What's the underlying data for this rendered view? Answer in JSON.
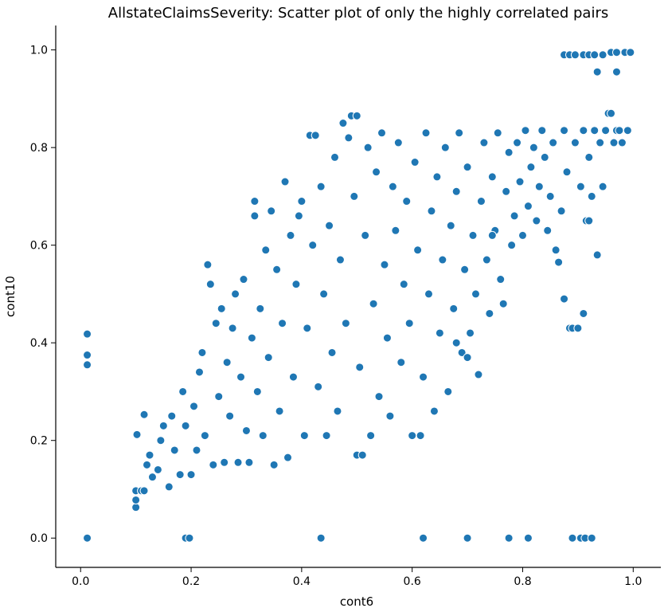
{
  "chart_data": {
    "type": "scatter",
    "title": "AllstateClaimsSeverity: Scatter plot of only the highly correlated pairs",
    "xlabel": "cont6",
    "ylabel": "cont10",
    "xlim": [
      -0.045,
      1.05
    ],
    "ylim": [
      -0.06,
      1.05
    ],
    "xticks": [
      0.0,
      0.2,
      0.4,
      0.6,
      0.8,
      1.0
    ],
    "xtick_labels": [
      "0.0",
      "0.2",
      "0.4",
      "0.6",
      "0.8",
      "1.0"
    ],
    "yticks": [
      0.0,
      0.2,
      0.4,
      0.6,
      0.8,
      1.0
    ],
    "ytick_labels": [
      "0.0",
      "0.2",
      "0.4",
      "0.6",
      "0.8",
      "1.0"
    ],
    "grid": false,
    "marker_color": "#1f77b4",
    "marker_edge_color": "#ffffff",
    "points": [
      [
        0.012,
        0.0
      ],
      [
        0.012,
        0.355
      ],
      [
        0.012,
        0.375
      ],
      [
        0.012,
        0.418
      ],
      [
        0.19,
        0.0
      ],
      [
        0.197,
        0.0
      ],
      [
        0.435,
        0.0
      ],
      [
        0.62,
        0.0
      ],
      [
        0.7,
        0.0
      ],
      [
        0.775,
        0.0
      ],
      [
        0.81,
        0.0
      ],
      [
        0.89,
        0.0
      ],
      [
        0.905,
        0.0
      ],
      [
        0.913,
        0.0
      ],
      [
        0.925,
        0.0
      ],
      [
        0.1,
        0.063
      ],
      [
        0.1,
        0.078
      ],
      [
        0.1,
        0.097
      ],
      [
        0.11,
        0.097
      ],
      [
        0.115,
        0.097
      ],
      [
        0.102,
        0.212
      ],
      [
        0.115,
        0.253
      ],
      [
        0.12,
        0.15
      ],
      [
        0.125,
        0.17
      ],
      [
        0.13,
        0.125
      ],
      [
        0.14,
        0.14
      ],
      [
        0.145,
        0.2
      ],
      [
        0.16,
        0.105
      ],
      [
        0.15,
        0.23
      ],
      [
        0.165,
        0.25
      ],
      [
        0.17,
        0.18
      ],
      [
        0.18,
        0.13
      ],
      [
        0.185,
        0.3
      ],
      [
        0.19,
        0.23
      ],
      [
        0.2,
        0.13
      ],
      [
        0.205,
        0.27
      ],
      [
        0.21,
        0.18
      ],
      [
        0.215,
        0.34
      ],
      [
        0.22,
        0.38
      ],
      [
        0.225,
        0.21
      ],
      [
        0.23,
        0.56
      ],
      [
        0.235,
        0.52
      ],
      [
        0.24,
        0.15
      ],
      [
        0.245,
        0.44
      ],
      [
        0.25,
        0.29
      ],
      [
        0.255,
        0.47
      ],
      [
        0.26,
        0.155
      ],
      [
        0.265,
        0.36
      ],
      [
        0.27,
        0.25
      ],
      [
        0.275,
        0.43
      ],
      [
        0.28,
        0.5
      ],
      [
        0.285,
        0.155
      ],
      [
        0.29,
        0.33
      ],
      [
        0.295,
        0.53
      ],
      [
        0.3,
        0.22
      ],
      [
        0.305,
        0.155
      ],
      [
        0.31,
        0.41
      ],
      [
        0.315,
        0.69
      ],
      [
        0.315,
        0.66
      ],
      [
        0.32,
        0.3
      ],
      [
        0.325,
        0.47
      ],
      [
        0.33,
        0.21
      ],
      [
        0.335,
        0.59
      ],
      [
        0.34,
        0.37
      ],
      [
        0.345,
        0.67
      ],
      [
        0.35,
        0.15
      ],
      [
        0.355,
        0.55
      ],
      [
        0.36,
        0.26
      ],
      [
        0.365,
        0.44
      ],
      [
        0.37,
        0.73
      ],
      [
        0.375,
        0.165
      ],
      [
        0.38,
        0.62
      ],
      [
        0.385,
        0.33
      ],
      [
        0.39,
        0.52
      ],
      [
        0.395,
        0.66
      ],
      [
        0.4,
        0.69
      ],
      [
        0.405,
        0.21
      ],
      [
        0.41,
        0.43
      ],
      [
        0.415,
        0.825
      ],
      [
        0.425,
        0.825
      ],
      [
        0.42,
        0.6
      ],
      [
        0.43,
        0.31
      ],
      [
        0.435,
        0.72
      ],
      [
        0.44,
        0.5
      ],
      [
        0.445,
        0.21
      ],
      [
        0.45,
        0.64
      ],
      [
        0.455,
        0.38
      ],
      [
        0.46,
        0.78
      ],
      [
        0.465,
        0.26
      ],
      [
        0.47,
        0.57
      ],
      [
        0.475,
        0.85
      ],
      [
        0.48,
        0.44
      ],
      [
        0.485,
        0.82
      ],
      [
        0.49,
        0.865
      ],
      [
        0.495,
        0.7
      ],
      [
        0.5,
        0.865
      ],
      [
        0.5,
        0.17
      ],
      [
        0.505,
        0.35
      ],
      [
        0.51,
        0.17
      ],
      [
        0.515,
        0.62
      ],
      [
        0.52,
        0.8
      ],
      [
        0.525,
        0.21
      ],
      [
        0.53,
        0.48
      ],
      [
        0.535,
        0.75
      ],
      [
        0.54,
        0.29
      ],
      [
        0.545,
        0.83
      ],
      [
        0.55,
        0.56
      ],
      [
        0.555,
        0.41
      ],
      [
        0.56,
        0.25
      ],
      [
        0.565,
        0.72
      ],
      [
        0.57,
        0.63
      ],
      [
        0.575,
        0.81
      ],
      [
        0.58,
        0.36
      ],
      [
        0.585,
        0.52
      ],
      [
        0.59,
        0.69
      ],
      [
        0.595,
        0.44
      ],
      [
        0.6,
        0.21
      ],
      [
        0.605,
        0.77
      ],
      [
        0.61,
        0.59
      ],
      [
        0.615,
        0.21
      ],
      [
        0.62,
        0.33
      ],
      [
        0.625,
        0.83
      ],
      [
        0.63,
        0.5
      ],
      [
        0.635,
        0.67
      ],
      [
        0.64,
        0.26
      ],
      [
        0.645,
        0.74
      ],
      [
        0.65,
        0.42
      ],
      [
        0.655,
        0.57
      ],
      [
        0.66,
        0.8
      ],
      [
        0.665,
        0.3
      ],
      [
        0.67,
        0.64
      ],
      [
        0.675,
        0.47
      ],
      [
        0.68,
        0.71
      ],
      [
        0.685,
        0.83
      ],
      [
        0.69,
        0.38
      ],
      [
        0.695,
        0.55
      ],
      [
        0.7,
        0.76
      ],
      [
        0.705,
        0.42
      ],
      [
        0.71,
        0.62
      ],
      [
        0.715,
        0.5
      ],
      [
        0.72,
        0.335
      ],
      [
        0.725,
        0.69
      ],
      [
        0.73,
        0.81
      ],
      [
        0.735,
        0.57
      ],
      [
        0.74,
        0.46
      ],
      [
        0.745,
        0.74
      ],
      [
        0.75,
        0.63
      ],
      [
        0.755,
        0.83
      ],
      [
        0.76,
        0.53
      ],
      [
        0.765,
        0.48
      ],
      [
        0.77,
        0.71
      ],
      [
        0.775,
        0.79
      ],
      [
        0.78,
        0.6
      ],
      [
        0.785,
        0.66
      ],
      [
        0.79,
        0.81
      ],
      [
        0.795,
        0.73
      ],
      [
        0.8,
        0.62
      ],
      [
        0.805,
        0.835
      ],
      [
        0.81,
        0.68
      ],
      [
        0.815,
        0.76
      ],
      [
        0.82,
        0.8
      ],
      [
        0.825,
        0.65
      ],
      [
        0.83,
        0.72
      ],
      [
        0.835,
        0.835
      ],
      [
        0.84,
        0.78
      ],
      [
        0.845,
        0.63
      ],
      [
        0.85,
        0.7
      ],
      [
        0.855,
        0.81
      ],
      [
        0.86,
        0.59
      ],
      [
        0.865,
        0.565
      ],
      [
        0.87,
        0.67
      ],
      [
        0.875,
        0.835
      ],
      [
        0.88,
        0.75
      ],
      [
        0.885,
        0.43
      ],
      [
        0.89,
        0.43
      ],
      [
        0.895,
        0.81
      ],
      [
        0.9,
        0.43
      ],
      [
        0.905,
        0.72
      ],
      [
        0.91,
        0.835
      ],
      [
        0.915,
        0.65
      ],
      [
        0.92,
        0.78
      ],
      [
        0.925,
        0.7
      ],
      [
        0.93,
        0.835
      ],
      [
        0.935,
        0.58
      ],
      [
        0.94,
        0.81
      ],
      [
        0.945,
        0.72
      ],
      [
        0.95,
        0.835
      ],
      [
        0.955,
        0.87
      ],
      [
        0.96,
        0.87
      ],
      [
        0.965,
        0.81
      ],
      [
        0.97,
        0.835
      ],
      [
        0.975,
        0.835
      ],
      [
        0.98,
        0.81
      ],
      [
        0.99,
        0.835
      ],
      [
        0.875,
        0.49
      ],
      [
        0.91,
        0.46
      ],
      [
        0.745,
        0.62
      ],
      [
        0.92,
        0.65
      ],
      [
        0.7,
        0.37
      ],
      [
        0.68,
        0.4
      ],
      [
        0.875,
        0.99
      ],
      [
        0.885,
        0.99
      ],
      [
        0.895,
        0.99
      ],
      [
        0.91,
        0.99
      ],
      [
        0.92,
        0.99
      ],
      [
        0.93,
        0.99
      ],
      [
        0.945,
        0.99
      ],
      [
        0.96,
        0.995
      ],
      [
        0.97,
        0.995
      ],
      [
        0.985,
        0.995
      ],
      [
        0.995,
        0.995
      ],
      [
        0.935,
        0.955
      ],
      [
        0.97,
        0.955
      ]
    ]
  }
}
